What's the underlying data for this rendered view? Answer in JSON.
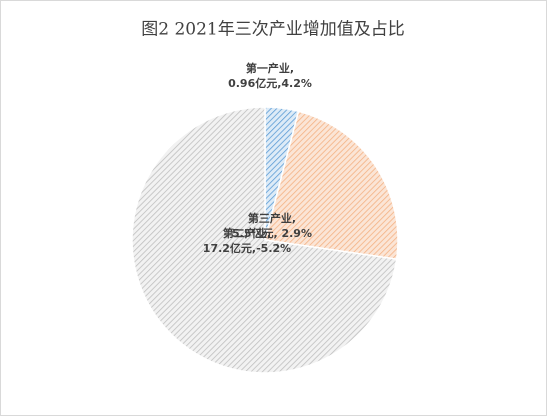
{
  "chart_data": {
    "type": "pie",
    "title": "图2  2021年三次产业增加值及占比",
    "categories": [
      "第一产业",
      "第三产业",
      "第二产业"
    ],
    "values": [
      0.96,
      5.5,
      17.2
    ],
    "value_labels": [
      [
        "第一产业,",
        "0.96亿元,4.2%"
      ],
      [
        "第三产业,",
        "5.5亿元, 2.9%"
      ],
      [
        "第二产业,",
        "17.2亿元,-5.2%"
      ]
    ],
    "colors": [
      "#9dc3e6",
      "#f4b183",
      "#bfbfbf"
    ]
  }
}
